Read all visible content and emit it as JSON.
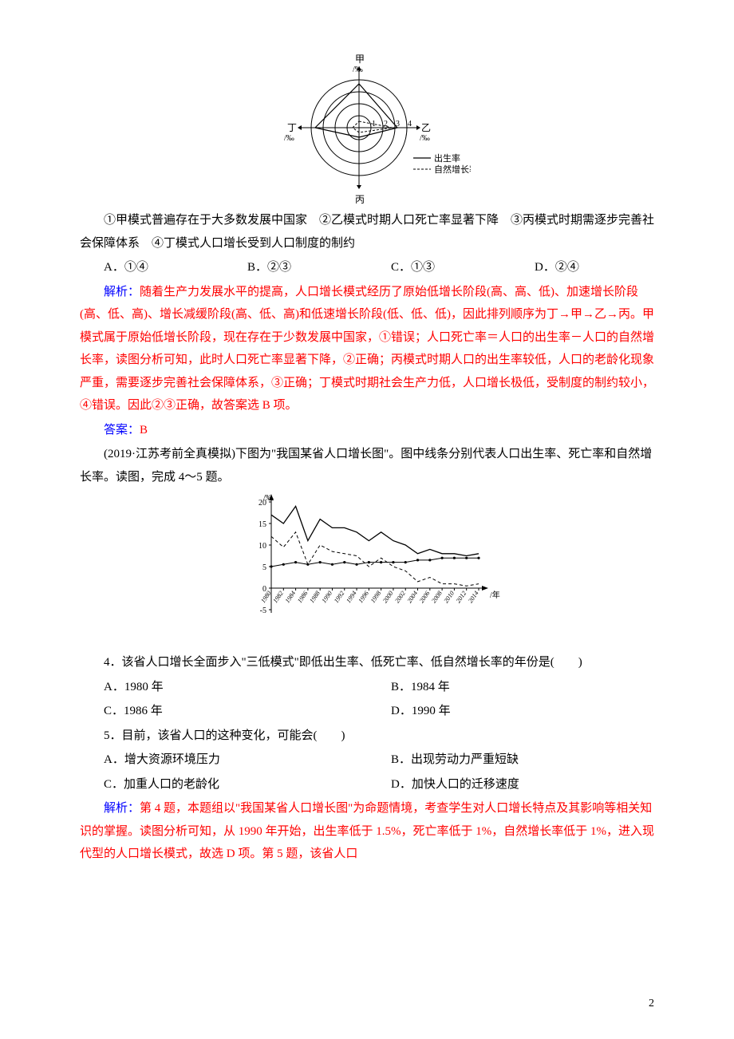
{
  "radar": {
    "labels": {
      "top": "甲",
      "right": "乙",
      "bottom": "丙",
      "left": "丁"
    },
    "unit": "/‰",
    "ring_labels": [
      "1",
      "2",
      "3",
      "4"
    ],
    "legend_solid": "出生率",
    "legend_dash": "自然增长率",
    "ink": "#000000",
    "bg": "#ffffff"
  },
  "q3": {
    "stmt1": "①甲模式普遍存在于大多数发展中国家　②乙模式时期人口死亡率显著下降　③丙模式时期需逐步完善社会保障体系　④丁模式人口增长受到人口制度的制约",
    "opts": {
      "A": "A．①④",
      "B": "B．②③",
      "C": "C．①③",
      "D": "D．②④"
    },
    "analysis_label": "解析：",
    "analysis": "随着生产力发展水平的提高，人口增长模式经历了原始低增长阶段(高、高、低)、加速增长阶段(高、低、高)、增长减缓阶段(高、低、高)和低速增长阶段(低、低、低)，因此排列顺序为丁→甲→乙→丙。甲模式属于原始低增长阶段，现在存在于少数发展中国家，①错误；人口死亡率＝人口的出生率－人口的自然增长率，读图分析可知，此时人口死亡率显著下降，②正确；丙模式时期人口的出生率较低，人口的老龄化现象严重，需要逐步完善社会保障体系，③正确；丁模式时期社会生产力低，人口增长极低，受制度的制约较小，④错误。因此②③正确，故答案选 B 项。",
    "answer_label": "答案：",
    "answer": "B"
  },
  "intro2": "(2019·江苏考前全真模拟)下图为\"我国某省人口增长图\"。图中线条分别代表人口出生率、死亡率和自然增长率。读图，完成 4～5 题。",
  "chart": {
    "ylabel": "/‰",
    "yticks": [
      "-5",
      "0",
      "5",
      "10",
      "15",
      "20"
    ],
    "yvals": [
      -5,
      0,
      5,
      10,
      15,
      20
    ],
    "xlabel": "/年",
    "xticks": [
      "1980",
      "1982",
      "1984",
      "1986",
      "1988",
      "1990",
      "1992",
      "1994",
      "1996",
      "1998",
      "2000",
      "2002",
      "2004",
      "2006",
      "2008",
      "2010",
      "2012",
      "2014"
    ],
    "series": {
      "solid": [
        17,
        15,
        19,
        11,
        16,
        14,
        14,
        13,
        11,
        13,
        11,
        10,
        8,
        9,
        8,
        8,
        7.5,
        8
      ],
      "dotted": [
        5,
        5.5,
        6,
        5.5,
        6,
        5.5,
        6,
        5.5,
        6,
        6,
        6,
        6,
        6.5,
        6.5,
        7,
        7,
        7,
        7
      ],
      "dashed": [
        12,
        9.5,
        13,
        5.5,
        10,
        8.5,
        8,
        7.5,
        5,
        7,
        5,
        4,
        1.5,
        2.5,
        1,
        1,
        0.5,
        1
      ]
    },
    "ink": "#000000",
    "bg": "#ffffff"
  },
  "q4": {
    "stem": "4．该省人口增长全面步入\"三低模式\"即低出生率、低死亡率、低自然增长率的年份是(　　)",
    "opts": {
      "A": "A．1980 年",
      "B": "B．1984 年",
      "C": "C．1986 年",
      "D": "D．1990 年"
    }
  },
  "q5": {
    "stem": "5．目前，该省人口的这种变化，可能会(　　)",
    "opts": {
      "A": "A．增大资源环境压力",
      "B": "B．出现劳动力严重短缺",
      "C": "C．加重人口的老龄化",
      "D": "D．加快人口的迁移速度"
    }
  },
  "final_analysis_label": "解析：",
  "final_analysis": "第 4 题，本题组以\"我国某省人口增长图\"为命题情境，考查学生对人口增长特点及其影响等相关知识的掌握。读图分析可知，从 1990 年开始，出生率低于 1.5%，死亡率低于 1%，自然增长率低于 1%，进入现代型的人口增长模式，故选 D 项。第 5 题，该省人口",
  "page_num": "2"
}
